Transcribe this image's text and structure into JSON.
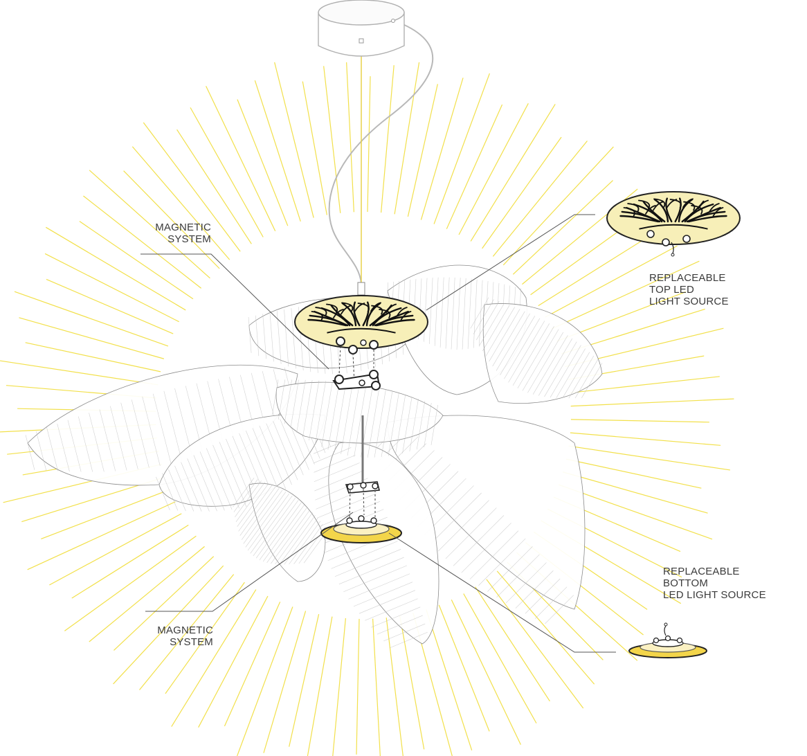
{
  "top_caption": "",
  "labels": {
    "magnetic_top": [
      "MAGNETIC",
      "SYSTEM"
    ],
    "replaceable_top": [
      "REPLACEABLE",
      "TOP LED",
      "LIGHT SOURCE"
    ],
    "replaceable_bottom": [
      "REPLACEABLE",
      "BOTTOM",
      "LED LIGHT SOURCE"
    ],
    "magnetic_bottom": [
      "MAGNETIC",
      "SYSTEM"
    ]
  },
  "colors": {
    "ray": "#f2e04a",
    "shade_line": "#bdbdbd",
    "shade_dark": "#8a8a8a",
    "led_fill": "#f7efb8",
    "led_glow": "#f3d54a",
    "leader": "#555555",
    "cable": "#b8b8b8"
  },
  "icons": {
    "canopy": "ceiling-canopy-icon",
    "top_led": "top-led-module-icon",
    "bottom_led": "bottom-led-module-icon",
    "magnet": "magnetic-connector-icon"
  }
}
